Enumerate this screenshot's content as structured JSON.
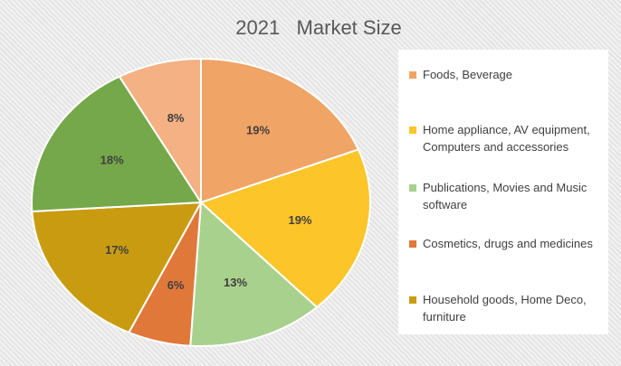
{
  "chart_data": {
    "type": "pie",
    "title": "2021   Market Size",
    "categories": [
      "Foods, Beverage",
      "Home appliance, AV equipment, Computers and accessories",
      "Publications, Movies and Music software",
      "Cosmetics, drugs and medicines",
      "Household goods, Home Deco, furniture",
      null,
      null
    ],
    "values": [
      19,
      19,
      13,
      6,
      17,
      18,
      8
    ],
    "value_labels": [
      "19%",
      "19%",
      "13%",
      "6%",
      "17%",
      "18%",
      "8%"
    ],
    "colors": [
      "#f0a465",
      "#fcc52a",
      "#a9d18e",
      "#e0783a",
      "#c99b10",
      "#75a84a",
      "#f4b183"
    ]
  }
}
